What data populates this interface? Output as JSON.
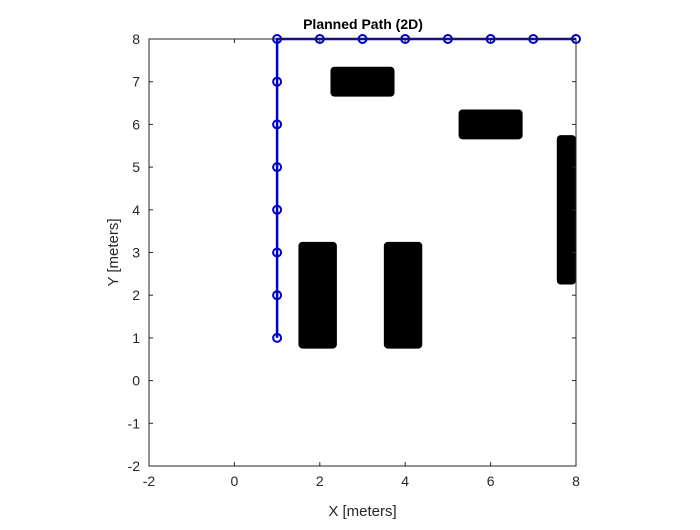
{
  "chart_data": {
    "type": "line",
    "title": "Planned Path (2D)",
    "xlabel": "X [meters]",
    "ylabel": "Y [meters]",
    "xlim": [
      -2,
      8
    ],
    "ylim": [
      -2,
      8
    ],
    "xticks": [
      -2,
      0,
      2,
      4,
      6,
      8
    ],
    "yticks": [
      -2,
      -1,
      0,
      1,
      2,
      3,
      4,
      5,
      6,
      7,
      8
    ],
    "grid": false,
    "legend": "none",
    "obstacle_color": "#000000",
    "obstacles": [
      {
        "x0": 2.25,
        "x1": 3.75,
        "y0": 6.65,
        "y1": 7.35
      },
      {
        "x0": 5.25,
        "x1": 6.75,
        "y0": 5.65,
        "y1": 6.35
      },
      {
        "x0": 7.55,
        "x1": 8.0,
        "y0": 2.25,
        "y1": 5.75
      },
      {
        "x0": 1.5,
        "x1": 2.4,
        "y0": 0.75,
        "y1": 3.25
      },
      {
        "x0": 3.5,
        "x1": 4.4,
        "y0": 0.75,
        "y1": 3.25
      }
    ],
    "series": [
      {
        "color": "#0000CD",
        "marker": "circle",
        "x": [
          1,
          1,
          1,
          1,
          1,
          1,
          1,
          1,
          2,
          3,
          4,
          5,
          6,
          7,
          8
        ],
        "y": [
          1,
          2,
          3,
          4,
          5,
          6,
          7,
          8,
          8,
          8,
          8,
          8,
          8,
          8,
          8
        ]
      }
    ]
  }
}
